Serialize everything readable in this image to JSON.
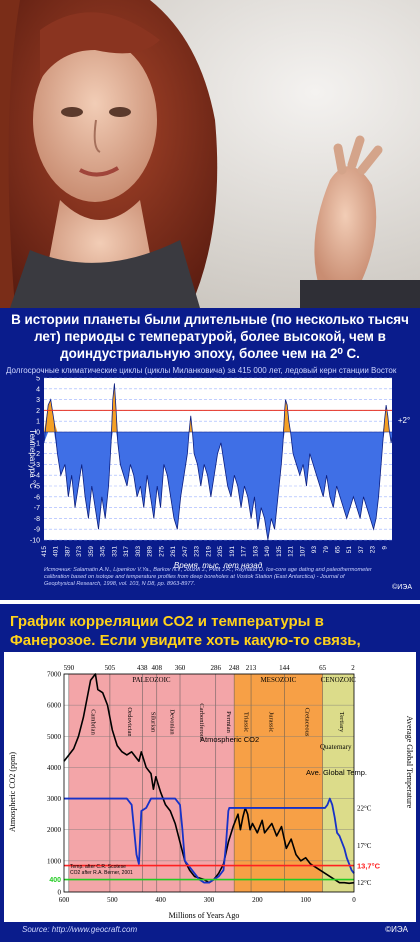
{
  "photo": {
    "subject": "woman-portrait"
  },
  "panel1": {
    "title": "В истории планеты были длительные (по несколько тысяч лет) периоды с температурой, более высокой, чем в доиндустриальную эпоху, более чем на 2⁰ С.",
    "subtitle": "Долгосрочные климатические циклы (циклы Миланковича) за 415 000 лет, ледовый керн станции Восток",
    "ylabel": "Температура °C",
    "xlabel": "Время, тыс. лет назад",
    "source": "Источник: Salamatin A.N., Lipenkov V.Ya., Barkov N.I., Jouzel J., Petit J.R., Raynaud D. Ice-core age dating and paleothermometer calibration based on isotope and temperature profiles from deep boreholes at Vostok Station (East Antarctica) - Journal of Geophysical Research, 1998, vol. 103, N D8, pp. 8963-8977.",
    "logo": "©ИЭА",
    "line_label": "+2°"
  },
  "panel2": {
    "title": "График корреляции CO2 и температуры в Фанерозое. Если увидите хоть какую-то связь, скажите мне",
    "source": "Source: http://www.geocraft.com",
    "logo": "©ИЭА"
  },
  "chart_data": [
    {
      "type": "area",
      "title": "",
      "xlabel": "Время, тыс. лет назад",
      "ylabel": "Температура °C",
      "xlim": [
        415,
        0
      ],
      "ylim": [
        -10,
        5
      ],
      "x_tick_labels": [
        "415",
        "401",
        "387",
        "373",
        "359",
        "345",
        "331",
        "317",
        "303",
        "289",
        "275",
        "261",
        "247",
        "233",
        "219",
        "205",
        "191",
        "177",
        "163",
        "149",
        "135",
        "121",
        "107",
        "93",
        "79",
        "65",
        "51",
        "37",
        "23",
        "9"
      ],
      "y_tick_labels": [
        "5",
        "4",
        "3",
        "2",
        "1",
        "0",
        "-1",
        "-2",
        "-3",
        "-4",
        "-5",
        "-6",
        "-7",
        "-8",
        "-9",
        "-10"
      ],
      "reference_line": {
        "value": 2,
        "label": "+2°"
      },
      "series": [
        {
          "x": [
            415,
            410,
            407,
            403,
            399,
            395,
            390,
            386,
            382,
            378,
            374,
            370,
            366,
            362,
            358,
            354,
            350,
            346,
            342,
            338,
            335,
            333,
            331,
            329,
            327,
            324,
            320,
            316,
            312,
            308,
            304,
            300,
            296,
            292,
            288,
            284,
            280,
            276,
            272,
            268,
            264,
            260,
            256,
            252,
            248,
            244,
            242,
            240,
            238,
            236,
            232,
            228,
            224,
            220,
            216,
            212,
            208,
            204,
            200,
            196,
            192,
            188,
            184,
            180,
            176,
            172,
            168,
            164,
            160,
            156,
            152,
            148,
            144,
            140,
            136,
            132,
            130,
            128,
            127,
            125,
            123,
            121,
            118,
            114,
            110,
            106,
            102,
            98,
            94,
            90,
            86,
            82,
            78,
            74,
            70,
            66,
            62,
            58,
            54,
            50,
            46,
            42,
            38,
            34,
            30,
            26,
            22,
            19,
            16,
            13,
            11,
            9,
            7,
            5,
            3,
            1,
            0
          ],
          "values": [
            -1,
            2.5,
            3,
            1,
            -2,
            -4,
            -3,
            -6,
            -4,
            -7,
            -5,
            -3,
            -6,
            -8,
            -5,
            -7,
            -9,
            -6,
            -8,
            -5,
            -1,
            3,
            4.5,
            2,
            -1,
            -3,
            -4,
            -5,
            -3,
            -4,
            -6,
            -5,
            -7,
            -4,
            -6,
            -8,
            -5,
            -7,
            -3,
            -4,
            -6,
            -8,
            -9,
            -6,
            -4,
            -2,
            0,
            1.5,
            0,
            -2,
            -3,
            -5,
            -3,
            -4,
            -6,
            -4,
            -2,
            -1,
            -3,
            -5,
            -6,
            -4,
            -5,
            -7,
            -5,
            -6,
            -8,
            -6,
            -9,
            -7,
            -8,
            -10,
            -8,
            -9,
            -6,
            -3,
            -1,
            2,
            3,
            2.5,
            1,
            0,
            -2,
            -3,
            -4,
            -3,
            -5,
            -2,
            -3,
            -4,
            -5,
            -6,
            -4,
            -6,
            -7,
            -5,
            -6,
            -7,
            -8,
            -7,
            -6,
            -7,
            -8,
            -6,
            -7,
            -8,
            -9,
            -8,
            -6,
            -3,
            -1,
            1,
            2.5,
            1.5,
            0,
            -1,
            -0.5
          ]
        }
      ]
    },
    {
      "type": "line",
      "title": "",
      "xlabel": "Millions of Years Ago",
      "ylabel": "Atmospheric CO2 (ppm)",
      "y2label": "Average Global Temperature",
      "xlim": [
        600,
        0
      ],
      "ylim": [
        0,
        7000
      ],
      "x_tick_labels": [
        "600",
        "500",
        "400",
        "300",
        "200",
        "100",
        "0"
      ],
      "top_tick_labels": [
        "590",
        "505",
        "438",
        "408",
        "360",
        "286",
        "248",
        "213",
        "144",
        "65",
        "2"
      ],
      "y_tick_labels": [
        "0",
        "1000",
        "2000",
        "3000",
        "4000",
        "5000",
        "6000",
        "7000"
      ],
      "y2_tick_labels": [
        "22°C",
        "17°C",
        "12°C"
      ],
      "eras": [
        {
          "name": "PALEOZOIC",
          "from": 590,
          "to": 248,
          "color": "#f3a5a8"
        },
        {
          "name": "MESOZOIC",
          "from": 248,
          "to": 65,
          "color": "#f7a046"
        },
        {
          "name": "CENOZOIC",
          "from": 65,
          "to": 0,
          "color": "#dcdc8a"
        }
      ],
      "periods": [
        {
          "name": "Cambrian",
          "from": 590,
          "to": 505
        },
        {
          "name": "Ordovician",
          "from": 505,
          "to": 438
        },
        {
          "name": "Silurian",
          "from": 438,
          "to": 408
        },
        {
          "name": "Devonian",
          "from": 408,
          "to": 360
        },
        {
          "name": "Carboniferous",
          "from": 360,
          "to": 286
        },
        {
          "name": "Permian",
          "from": 286,
          "to": 248
        },
        {
          "name": "Triassic",
          "from": 248,
          "to": 213
        },
        {
          "name": "Jurassic",
          "from": 213,
          "to": 144
        },
        {
          "name": "Cretaceous",
          "from": 144,
          "to": 65
        },
        {
          "name": "Tertiary",
          "from": 65,
          "to": 2
        }
      ],
      "quaternary_label": "Quaternary",
      "reference_lines": [
        {
          "value": 400,
          "label": "400",
          "color": "#22cc22"
        },
        {
          "value": 850,
          "label": "13,7°C",
          "color": "#ff2020"
        }
      ],
      "series_labels": {
        "co2": "Atmospheric CO2",
        "temp": "Ave. Global Temp."
      },
      "credits": [
        "Temp. after C.R. Scotese",
        "CO2 after R.A. Berner, 2001"
      ],
      "series": [
        {
          "name": "Atmospheric CO2",
          "x": [
            600,
            580,
            570,
            560,
            545,
            535,
            530,
            520,
            510,
            505,
            500,
            490,
            480,
            470,
            460,
            450,
            445,
            440,
            430,
            420,
            415,
            410,
            400,
            390,
            380,
            370,
            360,
            350,
            340,
            330,
            320,
            310,
            300,
            290,
            280,
            270,
            260,
            250,
            240,
            235,
            230,
            225,
            220,
            215,
            210,
            200,
            195,
            190,
            185,
            180,
            170,
            160,
            150,
            140,
            130,
            120,
            110,
            100,
            90,
            80,
            70,
            60,
            50,
            40,
            30,
            20,
            10,
            0
          ],
          "values": [
            4200,
            4600,
            5000,
            5600,
            6800,
            7000,
            6500,
            6400,
            6000,
            5600,
            5200,
            4700,
            4500,
            4400,
            4500,
            4300,
            4200,
            4500,
            4000,
            3800,
            3300,
            3700,
            3200,
            2800,
            2600,
            2200,
            1600,
            1000,
            700,
            500,
            450,
            400,
            300,
            400,
            600,
            900,
            1600,
            2100,
            2500,
            2000,
            2400,
            2700,
            2500,
            2000,
            2200,
            1900,
            2100,
            2300,
            1900,
            2000,
            2200,
            1800,
            2100,
            1400,
            1700,
            1200,
            1000,
            1100,
            900,
            800,
            700,
            600,
            500,
            400,
            300,
            300,
            280,
            300
          ]
        },
        {
          "name": "Ave. Global Temp.",
          "x": [
            600,
            580,
            560,
            540,
            520,
            500,
            480,
            470,
            460,
            450,
            445,
            440,
            430,
            420,
            410,
            400,
            390,
            380,
            370,
            360,
            355,
            350,
            340,
            330,
            320,
            310,
            300,
            290,
            280,
            270,
            265,
            260,
            258,
            250,
            240,
            230,
            220,
            210,
            200,
            190,
            180,
            170,
            160,
            150,
            140,
            130,
            120,
            110,
            100,
            90,
            80,
            70,
            60,
            55,
            50,
            45,
            40,
            35,
            30,
            25,
            20,
            15,
            10,
            5,
            0
          ],
          "values": [
            3000,
            3000,
            3000,
            3000,
            3000,
            3000,
            3000,
            3000,
            2800,
            1200,
            900,
            2600,
            2700,
            3000,
            3000,
            3000,
            3000,
            3000,
            3000,
            2800,
            2000,
            1000,
            800,
            600,
            400,
            300,
            300,
            400,
            500,
            700,
            1500,
            2600,
            2700,
            2700,
            2700,
            2700,
            2700,
            2700,
            2700,
            2700,
            2700,
            2700,
            2700,
            2700,
            2700,
            2700,
            2700,
            2700,
            2700,
            2700,
            2700,
            2700,
            2700,
            2800,
            3000,
            2800,
            2400,
            1900,
            1800,
            1600,
            1400,
            1100,
            900,
            700,
            600
          ]
        }
      ]
    }
  ]
}
